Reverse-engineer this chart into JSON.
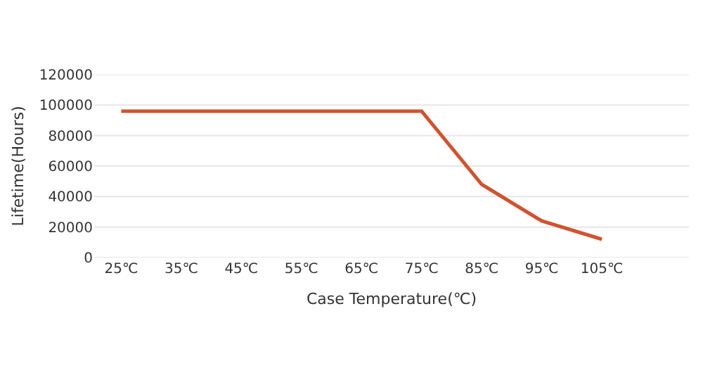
{
  "chart_data": {
    "type": "line",
    "xlabel": "Case Temperature(℃)",
    "ylabel": "Lifetime(Hours)",
    "categories": [
      "25℃",
      "35℃",
      "45℃",
      "55℃",
      "65℃",
      "75℃",
      "85℃",
      "95℃",
      "105℃",
      null
    ],
    "series": [
      {
        "color": "#d0532f",
        "values": [
          96000,
          96000,
          96000,
          96000,
          96000,
          96000,
          48000,
          24000,
          12000,
          null
        ]
      }
    ],
    "ylim": [
      0,
      120000
    ],
    "yticks": [
      0,
      20000,
      40000,
      60000,
      80000,
      100000,
      120000
    ],
    "grid": "y",
    "legend": false,
    "marker": "none",
    "line_style": "solid"
  }
}
